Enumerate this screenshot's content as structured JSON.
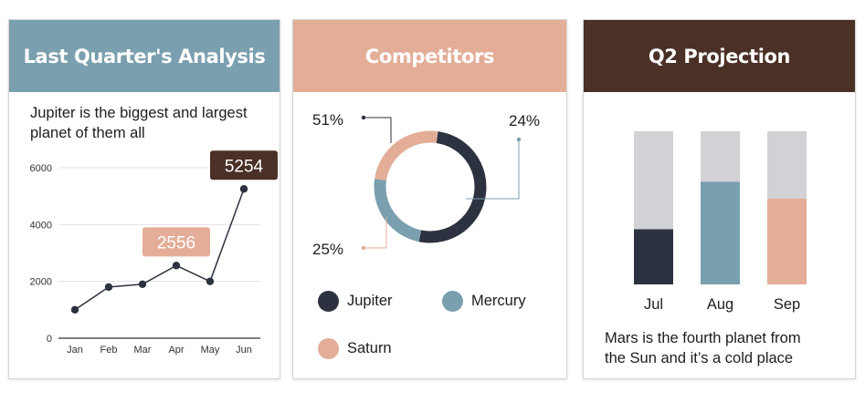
{
  "colors": {
    "blue": "#7a9fae",
    "salmon": "#e3ad97",
    "dark": "#2d3240",
    "brown": "#4a3026",
    "gray": "#d2d1d6",
    "white": "#ffffff"
  },
  "card1": {
    "title": "Last Quarter's Analysis",
    "description": [
      "Jupiter is the biggest and largest",
      "planet of them all"
    ],
    "chart_data": {
      "type": "line",
      "categories": [
        "Jan",
        "Feb",
        "Mar",
        "Apr",
        "May",
        "Jun"
      ],
      "values": [
        1000,
        1800,
        1900,
        2556,
        2000,
        5254
      ],
      "yticks": [
        0,
        2000,
        4000,
        6000
      ],
      "ylim": [
        0,
        6000
      ],
      "grid": true,
      "callouts": [
        {
          "label": "2556",
          "index": 3,
          "color": "#e3ad97"
        },
        {
          "label": "5254",
          "index": 5,
          "color": "#4a3026"
        }
      ]
    }
  },
  "card2": {
    "title": "Competitors",
    "chart_data": {
      "type": "pie",
      "slices": [
        {
          "name": "Jupiter",
          "value": 51,
          "label": "51%",
          "color": "#2d3240"
        },
        {
          "name": "Mercury",
          "value": 24,
          "label": "24%",
          "color": "#7a9fae"
        },
        {
          "name": "Saturn",
          "value": 25,
          "label": "25%",
          "color": "#e3ad97"
        }
      ]
    },
    "legend": [
      {
        "label": "Jupiter",
        "color": "#2d3240"
      },
      {
        "label": "Mercury",
        "color": "#7a9fae"
      },
      {
        "label": "Saturn",
        "color": "#e3ad97"
      }
    ]
  },
  "card3": {
    "title": "Q2 Projection",
    "chart_data": {
      "type": "bar",
      "stacked": true,
      "categories": [
        "Jul",
        "Aug",
        "Sep"
      ],
      "values": [
        0.36,
        0.67,
        0.56
      ],
      "colors": [
        "#2d3240",
        "#7a9fae",
        "#e3ad97"
      ],
      "track_color": "#d2d1d6"
    },
    "description": [
      "Mars is the fourth planet from",
      "the Sun and it’s a cold place"
    ]
  }
}
